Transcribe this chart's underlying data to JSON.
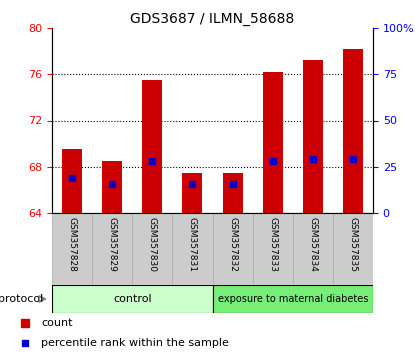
{
  "title": "GDS3687 / ILMN_58688",
  "categories": [
    "GSM357828",
    "GSM357829",
    "GSM357830",
    "GSM357831",
    "GSM357832",
    "GSM357833",
    "GSM357834",
    "GSM357835"
  ],
  "bar_tops": [
    69.5,
    68.5,
    75.5,
    67.5,
    67.5,
    76.2,
    77.2,
    78.2
  ],
  "bar_base": 64.0,
  "percentile_values": [
    67.0,
    66.5,
    68.5,
    66.5,
    66.5,
    68.5,
    68.7,
    68.7
  ],
  "bar_color": "#cc0000",
  "percentile_color": "#0000cc",
  "ylim_left": [
    64,
    80
  ],
  "ylim_right": [
    0,
    100
  ],
  "yticks_left": [
    64,
    68,
    72,
    76,
    80
  ],
  "ytick_labels_right": [
    "0",
    "25",
    "50",
    "75",
    "100%"
  ],
  "yticks_right": [
    0,
    25,
    50,
    75,
    100
  ],
  "grid_values": [
    68,
    72,
    76
  ],
  "control_samples": 4,
  "control_label": "control",
  "treatment_label": "exposure to maternal diabetes",
  "protocol_label": "protocol",
  "control_bg": "#ccffcc",
  "treatment_bg": "#77ee77",
  "xlabel_bg": "#cccccc",
  "legend_count_label": "count",
  "legend_pct_label": "percentile rank within the sample",
  "bar_width": 0.5,
  "title_fontsize": 10
}
